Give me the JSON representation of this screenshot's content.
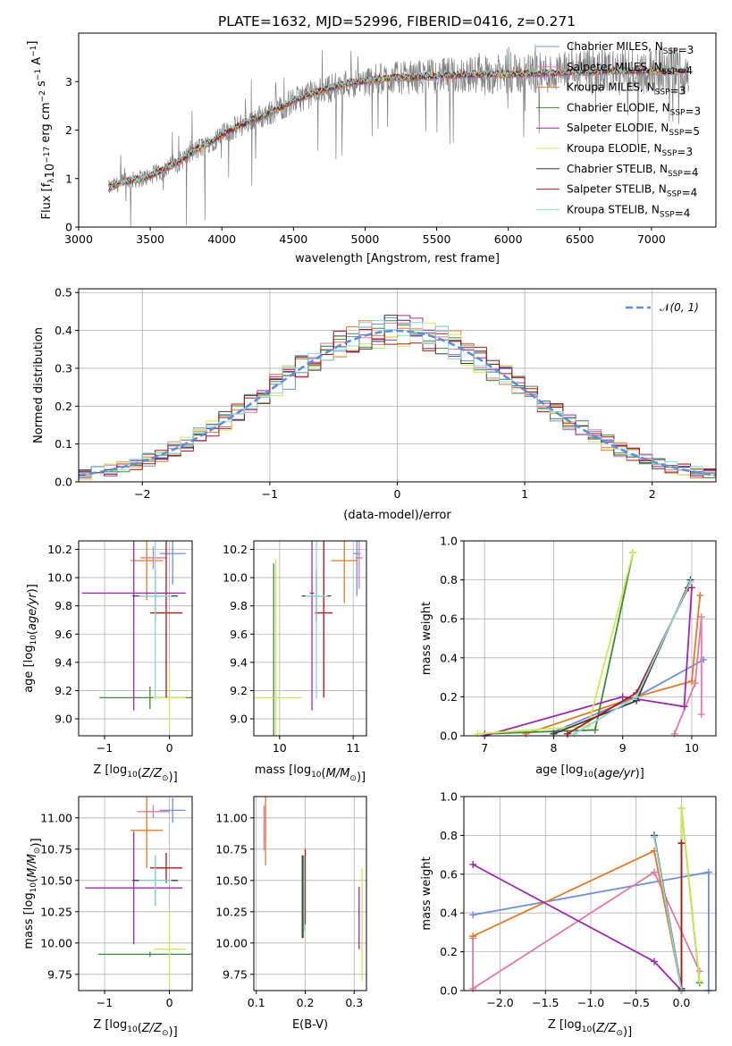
{
  "figure": {
    "title": "PLATE=1632, MJD=52996, FIBERID=0416, z=0.271"
  },
  "colors": {
    "chabrier_miles": "#6f8fdc",
    "salpeter_miles": "#e07aa8",
    "kroupa_miles": "#e07b2a",
    "chabrier_elodie": "#3d8a3d",
    "salpeter_elodie": "#9a2aae",
    "kroupa_elodie": "#cfe85a",
    "chabrier_stelib": "#3a3a3a",
    "salpeter_stelib": "#a81818",
    "kroupa_stelib": "#8fd6d6",
    "observed": "#808080",
    "gaussian": "#5b8fd9"
  },
  "chart_data": [
    {
      "id": "spectrum",
      "type": "line",
      "xlabel": "wavelength [Angstrom, rest frame]",
      "ylabel": "Flux [f_λ 10^-17 erg cm^-2 s^-1 A^-1]",
      "xlim": [
        3000,
        7450
      ],
      "ylim": [
        0,
        4.0
      ],
      "xticks": [
        3000,
        3500,
        4000,
        4500,
        5000,
        5500,
        6000,
        6500,
        7000
      ],
      "yticks": [
        0,
        1,
        2,
        3
      ],
      "legend_position": "top-right",
      "legend": [
        {
          "imf": "Chabrier",
          "lib": "MILES",
          "n": "3",
          "color_key": "chabrier_miles"
        },
        {
          "imf": "Salpeter",
          "lib": "MILES",
          "n": "4",
          "color_key": "salpeter_miles"
        },
        {
          "imf": "Kroupa",
          "lib": "MILES",
          "n": "3",
          "color_key": "kroupa_miles"
        },
        {
          "imf": "Chabrier",
          "lib": "ELODIE",
          "n": "3",
          "color_key": "chabrier_elodie"
        },
        {
          "imf": "Salpeter",
          "lib": "ELODIE",
          "n": "5",
          "color_key": "salpeter_elodie"
        },
        {
          "imf": "Kroupa",
          "lib": "ELODIE",
          "n": "3",
          "color_key": "kroupa_elodie"
        },
        {
          "imf": "Chabrier",
          "lib": "STELIB",
          "n": "4",
          "color_key": "chabrier_stelib"
        },
        {
          "imf": "Salpeter",
          "lib": "STELIB",
          "n": "4",
          "color_key": "salpeter_stelib"
        },
        {
          "imf": "Kroupa",
          "lib": "STELIB",
          "n": "4",
          "color_key": "kroupa_stelib"
        }
      ],
      "continuum": {
        "x": [
          3210,
          3300,
          3400,
          3500,
          3600,
          3700,
          3800,
          3900,
          4000,
          4100,
          4200,
          4300,
          4400,
          4500,
          4600,
          4700,
          4800,
          4900,
          5000,
          5100,
          5200,
          5300,
          5400,
          5500,
          5600,
          5700,
          5800,
          5900,
          6000,
          6100,
          6200,
          6300,
          6400,
          6500,
          6600,
          6700,
          6800,
          6900,
          7000,
          7100,
          7200,
          7260
        ],
        "y": [
          0.8,
          0.92,
          0.98,
          1.05,
          1.2,
          1.35,
          1.55,
          1.72,
          1.9,
          2.05,
          2.2,
          2.3,
          2.45,
          2.6,
          2.72,
          2.82,
          2.9,
          2.98,
          3.0,
          3.05,
          3.08,
          3.08,
          3.1,
          3.12,
          3.12,
          3.14,
          3.15,
          3.15,
          3.15,
          3.16,
          3.17,
          3.17,
          3.18,
          3.2,
          3.2,
          3.22,
          3.22,
          3.22,
          3.22,
          3.22,
          3.22,
          3.23
        ]
      }
    },
    {
      "id": "residuals",
      "type": "line",
      "xlabel": "(data-model)/error",
      "ylabel": "Normed distribution",
      "xlim": [
        -2.5,
        2.5
      ],
      "ylim": [
        0,
        0.51
      ],
      "xticks": [
        -2,
        -1,
        0,
        1,
        2
      ],
      "yticks": [
        0.0,
        0.1,
        0.2,
        0.3,
        0.4,
        0.5
      ],
      "legend_position": "top-right",
      "legend": [
        {
          "label": "N(0, 1)",
          "color_key": "gaussian",
          "style": "dashed"
        }
      ]
    },
    {
      "id": "age_vs_Z",
      "type": "scatter",
      "xlabel": "Z [log10(Z/Z⊙)]",
      "ylabel": "age  [log10(age/yr)]",
      "xlim": [
        -1.4,
        0.35
      ],
      "ylim": [
        8.88,
        10.26
      ],
      "xticks": [
        -1,
        0
      ],
      "yticks": [
        9.0,
        9.2,
        9.4,
        9.6,
        9.8,
        10.0,
        10.2
      ],
      "points": [
        {
          "key": "chabrier_miles",
          "x": 0.05,
          "y": 10.17,
          "xerr": 0.2,
          "yerr": 0.22
        },
        {
          "key": "salpeter_miles",
          "x": -0.25,
          "y": 10.14,
          "xerr": 0.2,
          "yerr": 0.08
        },
        {
          "key": "kroupa_miles",
          "x": -0.35,
          "y": 10.12,
          "xerr": 0.25,
          "yerr": 0.28
        },
        {
          "key": "chabrier_elodie",
          "x": -0.3,
          "y": 9.15,
          "xerr": 0.78,
          "yerr": 0.08
        },
        {
          "key": "salpeter_elodie",
          "x": -0.55,
          "y": 9.89,
          "xerr": 0.8,
          "yerr": 0.83
        },
        {
          "key": "kroupa_elodie",
          "x": 0.0,
          "y": 9.15,
          "xerr": 0.25,
          "yerr": 0.23
        },
        {
          "key": "chabrier_stelib",
          "x": -0.22,
          "y": 9.87,
          "xerr": 0.35,
          "yerr": 0.18
        },
        {
          "key": "salpeter_stelib",
          "x": -0.05,
          "y": 9.75,
          "xerr": 0.25,
          "yerr": 0.6
        },
        {
          "key": "kroupa_stelib",
          "x": -0.22,
          "y": 9.87,
          "xerr": 0.25,
          "yerr": 0.73
        }
      ]
    },
    {
      "id": "age_vs_mass",
      "type": "scatter",
      "xlabel": "mass [log10(M/M⊙)]",
      "ylabel": "",
      "xlim": [
        9.65,
        11.18
      ],
      "ylim": [
        8.88,
        10.26
      ],
      "xticks": [
        10,
        11
      ],
      "yticks": [
        9.0,
        9.2,
        9.4,
        9.6,
        9.8,
        10.0,
        10.2
      ],
      "points": [
        {
          "key": "chabrier_miles",
          "x": 11.05,
          "y": 10.17,
          "xerr": 0.05,
          "yerr": 0.3
        },
        {
          "key": "salpeter_miles",
          "x": 11.08,
          "y": 10.14,
          "xerr": 0.05,
          "yerr": 0.22
        },
        {
          "key": "kroupa_miles",
          "x": 10.88,
          "y": 10.12,
          "xerr": 0.18,
          "yerr": 0.3
        },
        {
          "key": "chabrier_elodie",
          "x": 9.92,
          "y": 9.15,
          "xerr": 0.03,
          "yerr": 0.95
        },
        {
          "key": "salpeter_elodie",
          "x": 10.44,
          "y": 9.89,
          "xerr": 0.03,
          "yerr": 0.83
        },
        {
          "key": "kroupa_elodie",
          "x": 9.95,
          "y": 9.15,
          "xerr": 0.35,
          "yerr": 0.98
        },
        {
          "key": "chabrier_stelib",
          "x": 10.5,
          "y": 9.87,
          "xerr": 0.2,
          "yerr": 0.18
        },
        {
          "key": "salpeter_stelib",
          "x": 10.6,
          "y": 9.75,
          "xerr": 0.12,
          "yerr": 0.6
        },
        {
          "key": "kroupa_stelib",
          "x": 10.5,
          "y": 9.87,
          "xerr": 0.15,
          "yerr": 0.73
        }
      ]
    },
    {
      "id": "weight_vs_age",
      "type": "line",
      "xlabel": "age  [log10(age/yr)]",
      "ylabel": "mass weight",
      "xlim": [
        6.7,
        10.35
      ],
      "ylim": [
        0,
        1.0
      ],
      "xticks": [
        7,
        8,
        9,
        10
      ],
      "yticks": [
        0.0,
        0.2,
        0.4,
        0.6,
        0.8,
        1.0
      ],
      "series": [
        {
          "key": "chabrier_miles",
          "x": [
            8.0,
            9.2,
            10.17
          ],
          "y": [
            0.02,
            0.2,
            0.39
          ]
        },
        {
          "key": "salpeter_miles",
          "x": [
            9.75,
            10.05,
            10.14,
            10.14
          ],
          "y": [
            0.01,
            0.27,
            0.61,
            0.11
          ]
        },
        {
          "key": "kroupa_miles",
          "x": [
            7.6,
            9.2,
            10.0,
            10.12
          ],
          "y": [
            0.01,
            0.2,
            0.28,
            0.72
          ]
        },
        {
          "key": "chabrier_elodie",
          "x": [
            7.0,
            8.6,
            9.15
          ],
          "y": [
            0.01,
            0.03,
            0.94
          ]
        },
        {
          "key": "salpeter_elodie",
          "x": [
            7.0,
            9.0,
            9.89,
            10.0
          ],
          "y": [
            0.0,
            0.2,
            0.15,
            0.76
          ]
        },
        {
          "key": "kroupa_elodie",
          "x": [
            6.9,
            8.5,
            9.15
          ],
          "y": [
            0.01,
            0.05,
            0.94
          ]
        },
        {
          "key": "chabrier_stelib",
          "x": [
            8.0,
            9.2,
            9.98
          ],
          "y": [
            0.01,
            0.18,
            0.8
          ]
        },
        {
          "key": "salpeter_stelib",
          "x": [
            8.2,
            9.2,
            9.95
          ],
          "y": [
            0.01,
            0.22,
            0.76
          ]
        },
        {
          "key": "kroupa_stelib",
          "x": [
            8.3,
            9.2,
            9.98
          ],
          "y": [
            0.01,
            0.2,
            0.79
          ]
        }
      ]
    },
    {
      "id": "mass_vs_Z",
      "type": "scatter",
      "xlabel": "Z [log10(Z/Z⊙)]",
      "ylabel": "mass [log10(M/M⊙)]",
      "xlim": [
        -1.4,
        0.35
      ],
      "ylim": [
        9.62,
        11.17
      ],
      "xticks": [
        -1,
        0
      ],
      "yticks": [
        9.75,
        10.0,
        10.25,
        10.5,
        10.75,
        11.0
      ],
      "points": [
        {
          "key": "chabrier_miles",
          "x": 0.05,
          "y": 11.06,
          "xerr": 0.2,
          "yerr": 0.1
        },
        {
          "key": "salpeter_miles",
          "x": -0.25,
          "y": 11.05,
          "xerr": 0.25,
          "yerr": 0.05
        },
        {
          "key": "kroupa_miles",
          "x": -0.35,
          "y": 10.9,
          "xerr": 0.25,
          "yerr": 0.3
        },
        {
          "key": "chabrier_elodie",
          "x": -0.3,
          "y": 9.91,
          "xerr": 0.8,
          "yerr": 0.02
        },
        {
          "key": "salpeter_elodie",
          "x": -0.55,
          "y": 10.44,
          "xerr": 0.75,
          "yerr": 0.45
        },
        {
          "key": "kroupa_elodie",
          "x": 0.0,
          "y": 9.95,
          "xerr": 0.25,
          "yerr": 0.3
        },
        {
          "key": "chabrier_stelib",
          "x": -0.22,
          "y": 10.5,
          "xerr": 0.35,
          "yerr": 0.2
        },
        {
          "key": "salpeter_stelib",
          "x": -0.05,
          "y": 10.6,
          "xerr": 0.25,
          "yerr": 0.12
        },
        {
          "key": "kroupa_stelib",
          "x": -0.22,
          "y": 10.5,
          "xerr": 0.25,
          "yerr": 0.2
        }
      ]
    },
    {
      "id": "mass_vs_ebv",
      "type": "scatter",
      "xlabel": "E(B-V)",
      "ylabel": "",
      "xlim": [
        0.095,
        0.325
      ],
      "ylim": [
        9.62,
        11.17
      ],
      "xticks": [
        0.1,
        0.2,
        0.3
      ],
      "yticks": [
        9.75,
        10.0,
        10.25,
        10.5,
        10.75,
        11.0
      ],
      "points": [
        {
          "key": "chabrier_miles",
          "x": 0.119,
          "y": 10.95,
          "xerr": 0.0,
          "yerr": 0.12
        },
        {
          "key": "salpeter_miles",
          "x": 0.116,
          "y": 10.92,
          "xerr": 0.0,
          "yerr": 0.18
        },
        {
          "key": "kroupa_miles",
          "x": 0.119,
          "y": 10.9,
          "xerr": 0.0,
          "yerr": 0.28
        },
        {
          "key": "chabrier_elodie",
          "x": 0.196,
          "y": 10.37,
          "xerr": 0.0,
          "yerr": 0.33
        },
        {
          "key": "salpeter_elodie",
          "x": 0.31,
          "y": 10.2,
          "xerr": 0.0,
          "yerr": 0.25
        },
        {
          "key": "kroupa_elodie",
          "x": 0.316,
          "y": 10.15,
          "xerr": 0.0,
          "yerr": 0.45
        },
        {
          "key": "chabrier_stelib",
          "x": 0.194,
          "y": 10.37,
          "xerr": 0.0,
          "yerr": 0.33
        },
        {
          "key": "salpeter_stelib",
          "x": 0.2,
          "y": 10.45,
          "xerr": 0.0,
          "yerr": 0.3
        },
        {
          "key": "kroupa_stelib",
          "x": 0.198,
          "y": 10.4,
          "xerr": 0.0,
          "yerr": 0.3
        }
      ]
    },
    {
      "id": "weight_vs_Z",
      "type": "line",
      "xlabel": "Z [log10(Z/Z⊙)]",
      "ylabel": "mass weight",
      "xlim": [
        -2.4,
        0.38
      ],
      "ylim": [
        0,
        1.0
      ],
      "xticks": [
        -2.0,
        -1.5,
        -1.0,
        -0.5,
        0.0
      ],
      "yticks": [
        0.0,
        0.2,
        0.4,
        0.6,
        0.8,
        1.0
      ],
      "series": [
        {
          "key": "chabrier_miles",
          "x": [
            -2.3,
            0.3,
            0.3
          ],
          "y": [
            0.39,
            0.61,
            0.0
          ]
        },
        {
          "key": "salpeter_miles",
          "x": [
            -2.3,
            -2.3,
            -0.3,
            0.2
          ],
          "y": [
            0.27,
            0.01,
            0.61,
            0.1
          ]
        },
        {
          "key": "kroupa_miles",
          "x": [
            -2.3,
            -0.3,
            0.0
          ],
          "y": [
            0.28,
            0.72,
            0.0
          ]
        },
        {
          "key": "chabrier_elodie",
          "x": [
            0.0,
            0.0,
            0.2
          ],
          "y": [
            0.01,
            0.94,
            0.04
          ]
        },
        {
          "key": "salpeter_elodie",
          "x": [
            -2.3,
            -0.3,
            0.0,
            0.0
          ],
          "y": [
            0.65,
            0.15,
            0.0,
            0.76
          ]
        },
        {
          "key": "kroupa_elodie",
          "x": [
            0.0,
            0.0,
            0.2
          ],
          "y": [
            0.01,
            0.94,
            0.05
          ]
        },
        {
          "key": "chabrier_stelib",
          "x": [
            -0.3,
            0.0
          ],
          "y": [
            0.8,
            0.01
          ]
        },
        {
          "key": "salpeter_stelib",
          "x": [
            0.0,
            0.0
          ],
          "y": [
            0.76,
            0.0
          ]
        },
        {
          "key": "kroupa_stelib",
          "x": [
            -0.3,
            0.0
          ],
          "y": [
            0.79,
            0.0
          ]
        }
      ]
    }
  ]
}
